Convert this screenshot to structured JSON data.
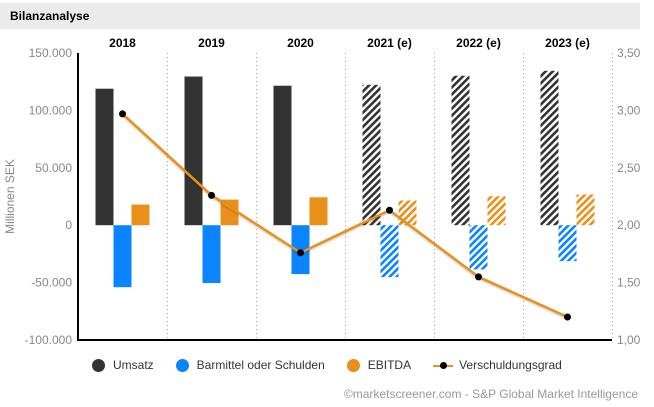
{
  "header": {
    "title": "Bilanzanalyse"
  },
  "credit": "©marketscreener.com - S&P Global Market Intelligence",
  "chart_data": {
    "type": "bar",
    "title": "Bilanzanalyse",
    "categories": [
      "2018",
      "2019",
      "2020",
      "2021 (e)",
      "2022 (e)",
      "2023 (e)"
    ],
    "estimated": [
      false,
      false,
      false,
      true,
      true,
      true
    ],
    "ylabel": "Millionen SEK",
    "ylim": [
      -100000,
      150000
    ],
    "yticks": [
      -100000,
      -50000,
      0,
      50000,
      100000,
      150000
    ],
    "ytick_labels": [
      "-100.000",
      "-50.000",
      "0",
      "50.000",
      "100.000",
      "150.000"
    ],
    "y2lim": [
      1.0,
      3.5
    ],
    "y2ticks": [
      1.0,
      1.5,
      2.0,
      2.5,
      3.0,
      3.5
    ],
    "y2tick_labels": [
      "1,00",
      "1,50",
      "2,00",
      "2,50",
      "3,00",
      "3,50"
    ],
    "grid": "vertical dotted separators between categories",
    "legend_position": "bottom",
    "series": [
      {
        "name": "Umsatz",
        "type": "bar",
        "color": "#333333",
        "axis": "left",
        "values": [
          118900,
          129500,
          121500,
          122300,
          130200,
          134500
        ]
      },
      {
        "name": "Barmittel oder Schulden",
        "type": "bar",
        "color": "#0a84ff",
        "axis": "left",
        "values": [
          -54000,
          -50400,
          -42600,
          -45200,
          -38500,
          -31300
        ]
      },
      {
        "name": "EBITDA",
        "type": "bar",
        "color": "#e8901a",
        "axis": "left",
        "values": [
          18000,
          22300,
          24300,
          21500,
          25200,
          26700
        ]
      },
      {
        "name": "Verschuldungsgrad",
        "type": "line",
        "color": "#e8901a",
        "marker_color": "#000000",
        "axis": "right",
        "values": [
          2.97,
          2.26,
          1.76,
          2.13,
          1.55,
          1.2
        ]
      }
    ]
  }
}
